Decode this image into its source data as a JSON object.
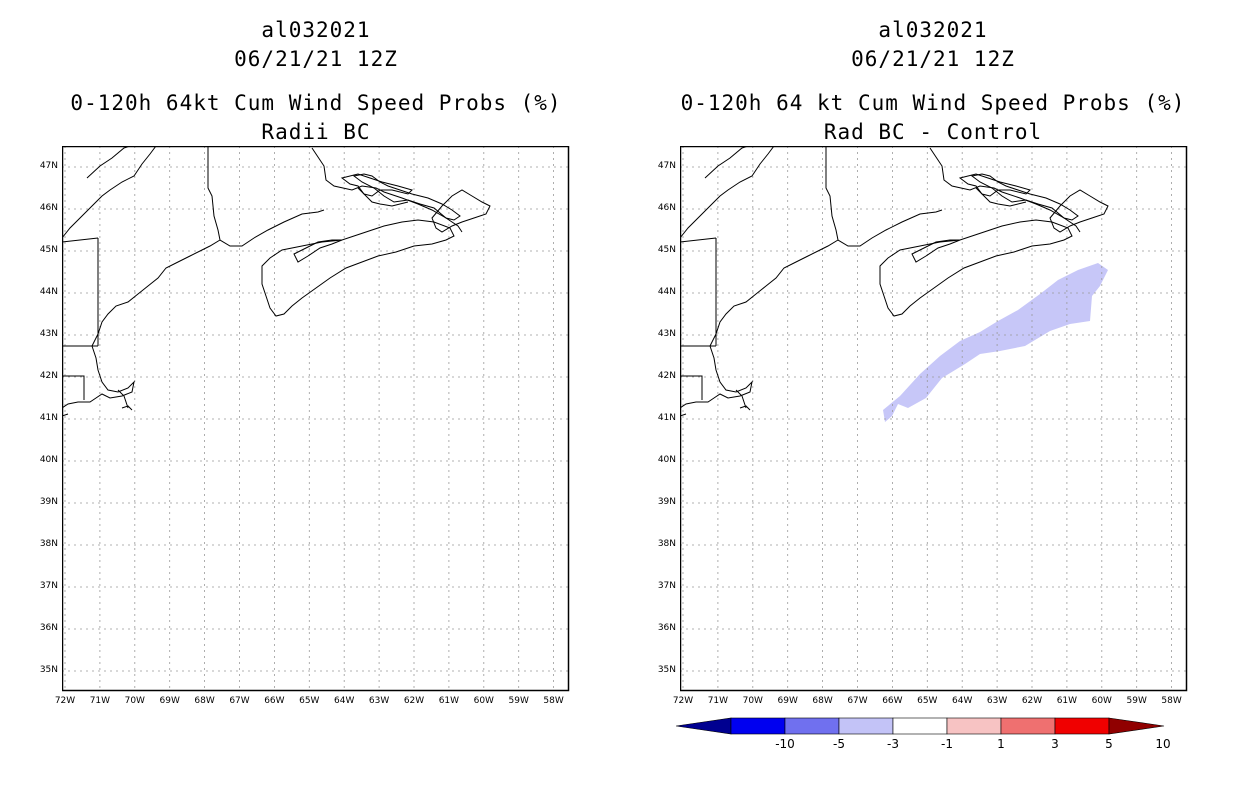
{
  "left_panel": {
    "title_line1": "al032021",
    "title_line2": "06/21/21 12Z",
    "title_line3": "0-120h 64kt Cum Wind Speed Probs (%)",
    "title_line4": "Radii BC"
  },
  "right_panel": {
    "title_line1": "al032021",
    "title_line2": "06/21/21 12Z",
    "title_line3": "0-120h 64 kt Cum Wind Speed Probs (%)",
    "title_line4": "Rad BC - Control"
  },
  "map_axes": {
    "lat_labels": [
      "47N",
      "46N",
      "45N",
      "44N",
      "43N",
      "42N",
      "41N",
      "40N",
      "39N",
      "38N",
      "37N",
      "36N",
      "35N"
    ],
    "lon_labels": [
      "72W",
      "71W",
      "70W",
      "69W",
      "68W",
      "67W",
      "66W",
      "65W",
      "64W",
      "63W",
      "62W",
      "61W",
      "60W",
      "59W",
      "58W"
    ],
    "lat_range": [
      34.5,
      47.5
    ],
    "lon_range": [
      -72,
      -57.5
    ]
  },
  "colorbar": {
    "labels": [
      "-10",
      "-5",
      "-3",
      "-1",
      "1",
      "3",
      "5",
      "10"
    ],
    "colors": [
      "#000090",
      "#0000f0",
      "#7070ef",
      "#c3c3f7",
      "#ffffff",
      "#f7c3c3",
      "#ef7070",
      "#f00000",
      "#900000"
    ]
  },
  "shading": {
    "diff_color": "#c7c7f8",
    "region": "negative difference (-3 to -1) south of Nova Scotia"
  }
}
